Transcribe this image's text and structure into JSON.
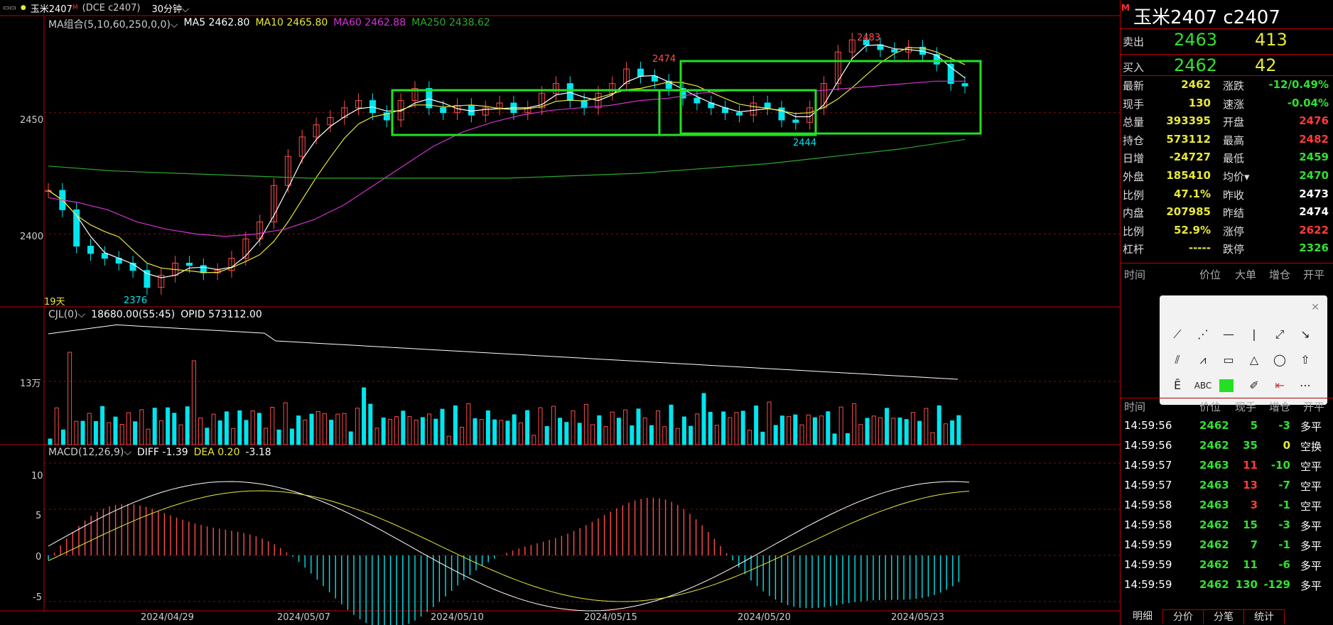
{
  "top": {
    "menu_icon": "menu-icon",
    "dot": "●",
    "name": "玉米2407",
    "m_mark": "M",
    "code": "(DCE c2407)",
    "period": "30分钟"
  },
  "ma_line": {
    "label": "MA组合(5,10,60,250,0,0)",
    "ma5": "MA5 2462.80",
    "ma10": "MA10 2465.80",
    "ma60": "MA60 2462.88",
    "ma250": "MA250 2438.62"
  },
  "vol_line": {
    "label": "CJL(0)",
    "v1": "18680.00(55:45)",
    "v2": "OPID 573112.00"
  },
  "macd_line": {
    "label": "MACD(12,26,9)",
    "diff": "DIFF -1.39",
    "dea": "DEA 0.20",
    "macd": "-3.18"
  },
  "price_axis": [
    "2450",
    "2400"
  ],
  "vol_axis": [
    "13万"
  ],
  "macd_axis": [
    "10",
    "5",
    "0",
    "-5"
  ],
  "x_axis": [
    "2024/04/29",
    "2024/05/07",
    "2024/05/10",
    "2024/05/15",
    "2024/05/20",
    "2024/05/23"
  ],
  "annotations": {
    "high": "2483",
    "low": "2376",
    "mid_high": "2474",
    "mid_low": "2444",
    "days": "19天"
  },
  "chart_data": {
    "type": "candlestick",
    "price_range": [
      2370,
      2490
    ],
    "close_series": [
      2418,
      2410,
      2395,
      2392,
      2390,
      2388,
      2385,
      2378,
      2383,
      2388,
      2387,
      2384,
      2385,
      2390,
      2398,
      2405,
      2420,
      2432,
      2440,
      2445,
      2448,
      2452,
      2455,
      2450,
      2447,
      2455,
      2460,
      2452,
      2450,
      2453,
      2449,
      2452,
      2454,
      2450,
      2452,
      2458,
      2462,
      2455,
      2452,
      2458,
      2462,
      2468,
      2465,
      2463,
      2460,
      2456,
      2454,
      2452,
      2450,
      2449,
      2454,
      2452,
      2447,
      2446,
      2452,
      2462,
      2475,
      2480,
      2478,
      2476,
      2475,
      2477,
      2474,
      2470,
      2462,
      2461
    ],
    "ma60_series": [
      2415,
      2413,
      2410,
      2405,
      2402,
      2400,
      2399,
      2400,
      2402,
      2406,
      2412,
      2420,
      2428,
      2436,
      2442,
      2446,
      2449,
      2451,
      2452,
      2453,
      2455,
      2456,
      2458,
      2459,
      2459,
      2459,
      2459,
      2460,
      2461,
      2462,
      2463,
      2463
    ],
    "ma250_series": [
      2428,
      2426,
      2425,
      2424,
      2423,
      2423,
      2423,
      2423,
      2424,
      2425,
      2427,
      2429,
      2432,
      2435,
      2439
    ],
    "volume_axis_label": "13万",
    "macd_range": [
      -6,
      12
    ]
  },
  "right_panel": {
    "m_mark": "M",
    "title": "玉米2407  c2407",
    "sell_label": "卖出",
    "sell_price": "2463",
    "sell_qty": "413",
    "buy_label": "买入",
    "buy_price": "2462",
    "buy_qty": "42",
    "stats": [
      {
        "l1": "最新",
        "v1": "2462",
        "c1": "#e8e83a",
        "l2": "涨跌",
        "v2": "-12/0.49%",
        "c2": "#31e031"
      },
      {
        "l1": "现手",
        "v1": "130",
        "c1": "#e8e83a",
        "l2": "速涨",
        "v2": "-0.04%",
        "c2": "#31e031"
      },
      {
        "l1": "总量",
        "v1": "393395",
        "c1": "#e8e83a",
        "l2": "开盘",
        "v2": "2476",
        "c2": "#ff3b3b"
      },
      {
        "l1": "持仓",
        "v1": "573112",
        "c1": "#e8e83a",
        "l2": "最高",
        "v2": "2482",
        "c2": "#ff3b3b"
      },
      {
        "l1": "日增",
        "v1": "-24727",
        "c1": "#e8e83a",
        "l2": "最低",
        "v2": "2459",
        "c2": "#31e031"
      },
      {
        "l1": "外盘",
        "v1": "185410",
        "c1": "#e8e83a",
        "l2": "均价",
        "v2": "2470",
        "c2": "#31e031"
      },
      {
        "l1": "比例",
        "v1": "47.1%",
        "c1": "#e8e83a",
        "l2": "昨收",
        "v2": "2473",
        "c2": "#ffffff"
      },
      {
        "l1": "内盘",
        "v1": "207985",
        "c1": "#e8e83a",
        "l2": "昨结",
        "v2": "2474",
        "c2": "#ffffff"
      },
      {
        "l1": "比例",
        "v1": "52.9%",
        "c1": "#e8e83a",
        "l2": "涨停",
        "v2": "2622",
        "c2": "#ff3b3b"
      },
      {
        "l1": "杠杆",
        "v1": "-----",
        "c1": "#e8e83a",
        "l2": "跌停",
        "v2": "2326",
        "c2": "#31e031"
      }
    ],
    "ticks_head": [
      "时间",
      "价位",
      "大单",
      "增仓",
      "开平"
    ],
    "ticks_head2": [
      "时间",
      "价位",
      "现手",
      "增仓",
      "开平"
    ],
    "ticks": [
      {
        "t": "14:59:56",
        "p": "2462",
        "q": "5",
        "z": "-3",
        "k": "多平",
        "qc": "#31e031",
        "zc": "#31e031"
      },
      {
        "t": "14:59:56",
        "p": "2462",
        "q": "35",
        "z": "0",
        "k": "空换",
        "qc": "#31e031",
        "zc": "#e8e83a"
      },
      {
        "t": "14:59:57",
        "p": "2463",
        "q": "11",
        "z": "-10",
        "k": "空平",
        "qc": "#ff3b3b",
        "zc": "#31e031"
      },
      {
        "t": "14:59:57",
        "p": "2463",
        "q": "13",
        "z": "-7",
        "k": "空平",
        "qc": "#ff3b3b",
        "zc": "#31e031"
      },
      {
        "t": "14:59:58",
        "p": "2463",
        "q": "3",
        "z": "-1",
        "k": "空平",
        "qc": "#ff3b3b",
        "zc": "#31e031"
      },
      {
        "t": "14:59:58",
        "p": "2462",
        "q": "15",
        "z": "-3",
        "k": "多平",
        "qc": "#31e031",
        "zc": "#31e031"
      },
      {
        "t": "14:59:59",
        "p": "2462",
        "q": "7",
        "z": "-1",
        "k": "多平",
        "qc": "#31e031",
        "zc": "#31e031"
      },
      {
        "t": "14:59:59",
        "p": "2462",
        "q": "11",
        "z": "-6",
        "k": "多平",
        "qc": "#31e031",
        "zc": "#31e031"
      },
      {
        "t": "14:59:59",
        "p": "2462",
        "q": "130",
        "z": "-129",
        "k": "多平",
        "qc": "#31e031",
        "zc": "#31e031"
      }
    ],
    "tabs": [
      "明细",
      "分价",
      "分笔",
      "统计"
    ]
  },
  "draw_tools": {
    "close": "✕",
    "text_tool": "ABC"
  },
  "colors": {
    "up": "#ff4d4d",
    "down": "#00e5ee",
    "ma5": "#ffffff",
    "ma10": "#e8e83a",
    "ma60": "#d433d4",
    "ma250": "#2ea82e",
    "box": "#22e022"
  }
}
